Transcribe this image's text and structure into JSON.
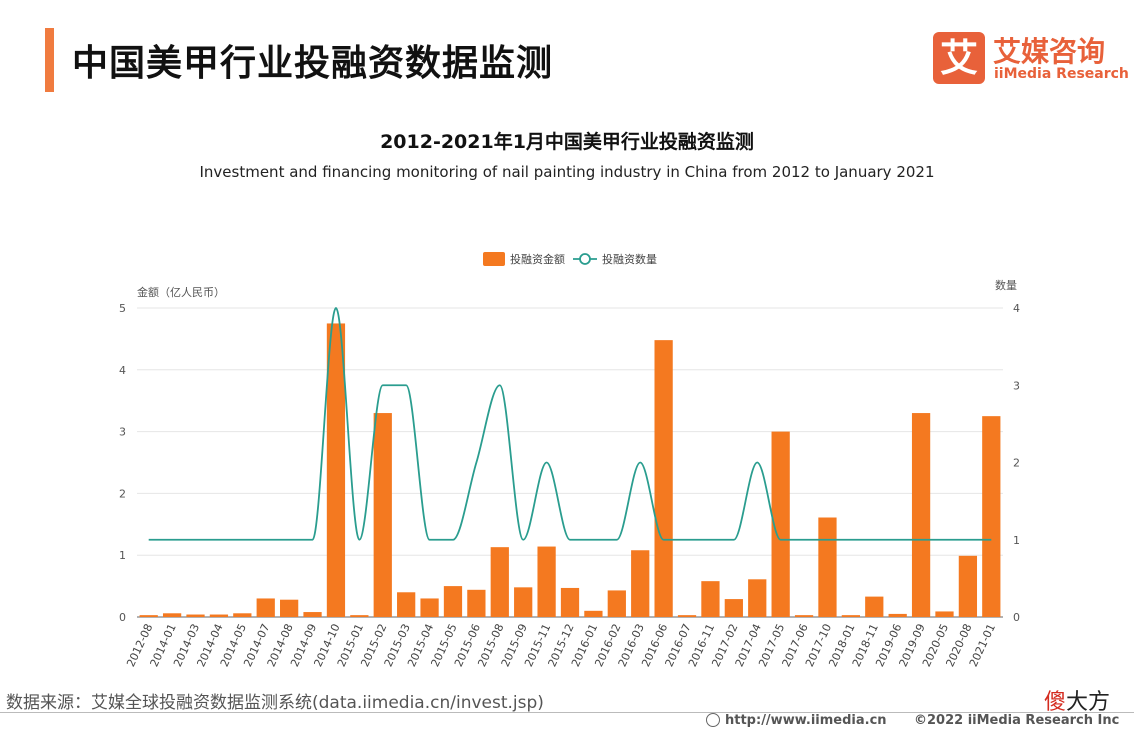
{
  "header": {
    "title": "中国美甲行业投融资数据监测",
    "logo_cn": "艾媒咨询",
    "logo_en": "iiMedia Research",
    "logo_badge": "艾"
  },
  "colors": {
    "accent": "#f07b3f",
    "bar": "#f47920",
    "line": "#2a9d8f",
    "brand": "#e8613a"
  },
  "chart_data": {
    "type": "bar",
    "title": "2012-2021年1月中国美甲行业投融资监测",
    "subtitle": "Investment and financing monitoring of nail painting industry in China from 2012 to January 2021",
    "ylabel": "金额（亿人民币）",
    "y2label": "数量",
    "ylim": [
      0,
      5
    ],
    "y2lim": [
      0,
      4
    ],
    "yticks": [
      "0",
      "1",
      "2",
      "3",
      "4",
      "5"
    ],
    "y2ticks": [
      "0",
      "1",
      "2",
      "3",
      "4"
    ],
    "grid": true,
    "legend_position": "top-center",
    "categories": [
      "2012-08",
      "2014-01",
      "2014-03",
      "2014-04",
      "2014-05",
      "2014-07",
      "2014-08",
      "2014-09",
      "2014-10",
      "2015-01",
      "2015-02",
      "2015-03",
      "2015-04",
      "2015-05",
      "2015-06",
      "2015-08",
      "2015-09",
      "2015-11",
      "2015-12",
      "2016-01",
      "2016-02",
      "2016-03",
      "2016-06",
      "2016-07",
      "2016-11",
      "2017-02",
      "2017-04",
      "2017-05",
      "2017-06",
      "2017-10",
      "2018-01",
      "2018-11",
      "2019-06",
      "2019-09",
      "2020-05",
      "2020-08",
      "2021-01"
    ],
    "series": [
      {
        "name": "投融资金额",
        "type": "bar",
        "axis": "left",
        "values": [
          0.03,
          0.06,
          0.04,
          0.04,
          0.06,
          0.3,
          0.28,
          0.08,
          4.75,
          0.03,
          3.3,
          0.4,
          0.3,
          0.5,
          0.44,
          1.13,
          0.48,
          1.14,
          0.47,
          0.1,
          0.43,
          1.08,
          4.48,
          0.03,
          0.58,
          0.29,
          0.61,
          3.0,
          0.03,
          1.61,
          0.03,
          0.33,
          0.05,
          3.3,
          0.09,
          0.99,
          3.25
        ]
      },
      {
        "name": "投融资数量",
        "type": "line",
        "axis": "right",
        "values": [
          1,
          1,
          1,
          1,
          1,
          1,
          1,
          1,
          4,
          1,
          3,
          3,
          1,
          1,
          2,
          3,
          1,
          2,
          1,
          1,
          1,
          2,
          1,
          1,
          1,
          1,
          2,
          1,
          1,
          1,
          1,
          1,
          1,
          1,
          1,
          1,
          1
        ]
      }
    ]
  },
  "footer": {
    "source": "数据来源：艾媒全球投融资数据监测系统(data.iimedia.cn/invest.jsp)",
    "url": "http://www.iimedia.cn",
    "copyright": "©2022  iiMedia Research  Inc",
    "watermark_a": "傻",
    "watermark_b": "大方"
  }
}
